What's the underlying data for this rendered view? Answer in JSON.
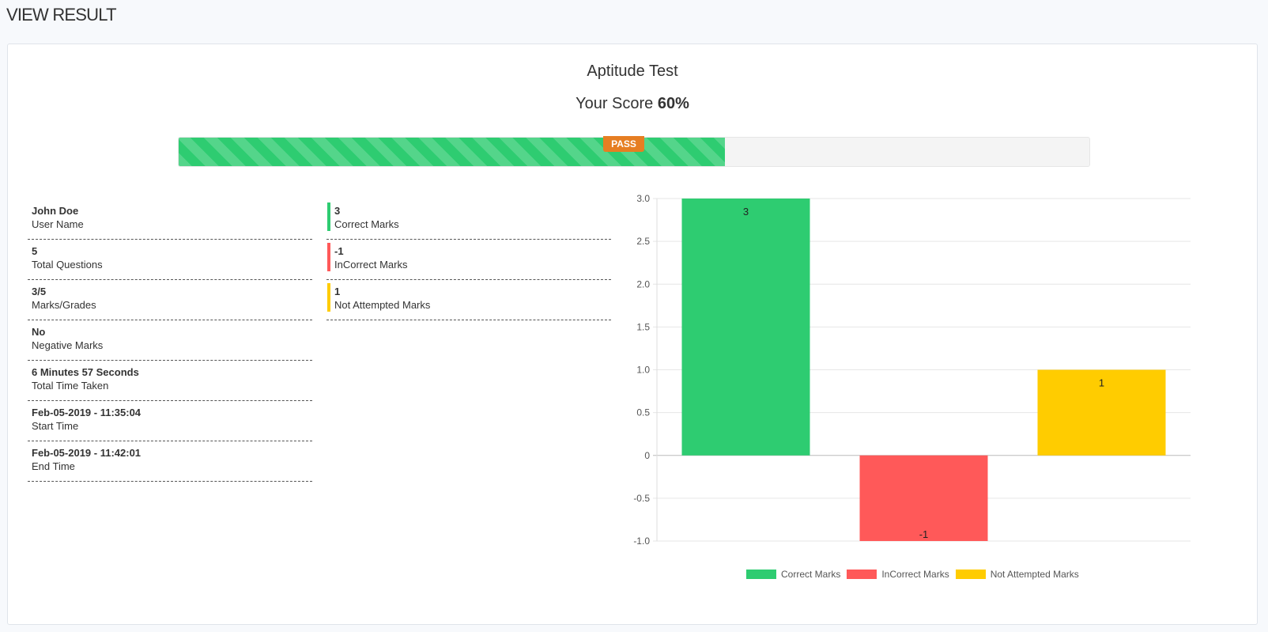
{
  "page": {
    "title": "VIEW RESULT"
  },
  "result": {
    "test_name": "Aptitude Test",
    "score_label": "Your Score",
    "score_value": "60%",
    "progress_fraction": 0.6,
    "badge": "PASS"
  },
  "details": [
    {
      "value": "John Doe",
      "label": "User Name"
    },
    {
      "value": "5",
      "label": "Total Questions"
    },
    {
      "value": "3/5",
      "label": "Marks/Grades"
    },
    {
      "value": "No",
      "label": "Negative Marks"
    },
    {
      "value": "6 Minutes 57 Seconds",
      "label": "Total Time Taken"
    },
    {
      "value": "Feb-05-2019 - 11:35:04",
      "label": "Start Time"
    },
    {
      "value": "Feb-05-2019 - 11:42:01",
      "label": "End Time"
    }
  ],
  "marks": [
    {
      "value": "3",
      "label": "Correct Marks",
      "color": "#2ecc71"
    },
    {
      "value": "-1",
      "label": "InCorrect Marks",
      "color": "#ff5959"
    },
    {
      "value": "1",
      "label": "Not Attempted Marks",
      "color": "#ffcc00"
    }
  ],
  "chart_data": {
    "type": "bar",
    "categories": [
      "Correct Marks",
      "InCorrect Marks",
      "Not Attempted Marks"
    ],
    "values": [
      3,
      -1,
      1
    ],
    "data_labels": [
      "3",
      "-1",
      "1"
    ],
    "colors": [
      "#2ecc71",
      "#ff5959",
      "#ffcc00"
    ],
    "ylim": [
      -1.0,
      3.0
    ],
    "yticks": [
      "3.0",
      "2.5",
      "2.0",
      "1.5",
      "1.0",
      "0.5",
      "0",
      "-0.5",
      "-1.0"
    ],
    "grid": true,
    "legend": "bottom",
    "legend_entries": [
      "Correct Marks",
      "InCorrect Marks",
      "Not Attempted Marks"
    ]
  }
}
